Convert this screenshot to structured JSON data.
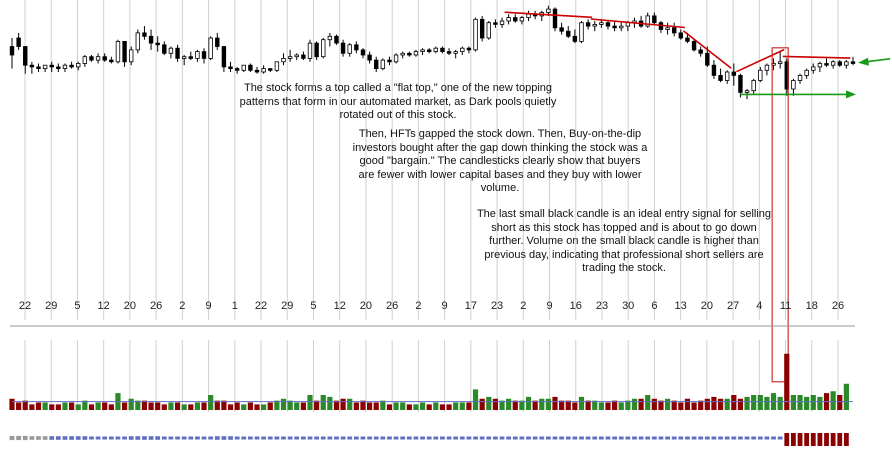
{
  "annotations": [
    "The stock forms a top called a \"flat top,\" one of the new topping patterns that form in our automated market, as Dark pools quietly rotated out of this stock.",
    "Then, HFTs gapped the stock down. Then, Buy-on-the-dip investors bought after the gap down thinking the stock was a good \"bargain.\" The candlesticks clearly show that buyers are fewer with lower capital bases and they buy with lower volume.",
    "The last small black candle is an ideal entry signal for selling short as this stock has topped and is about to go down further. Volume on the small black candle is higher than previous day, indicating that professional short sellers are trading the stock."
  ],
  "colors": {
    "grid": "#d0d0d0",
    "candle": "#000000",
    "trendline": "#cc0000",
    "arrow": "#1a9a1a",
    "volume_up": "#2a8a2a",
    "volume_down": "#8b0000",
    "highlight_box": "#cc3333",
    "volume_avg": "#6070c0",
    "indicator": "#8b0000",
    "indicator_grey": "#999999"
  },
  "chart_data": {
    "type": "candlestick",
    "x_tick_labels": [
      "22",
      "29",
      "5",
      "12",
      "20",
      "26",
      "2",
      "9",
      "1",
      "22",
      "29",
      "5",
      "12",
      "20",
      "26",
      "2",
      "9",
      "17",
      "23",
      "2",
      "9",
      "16",
      "23",
      "30",
      "6",
      "13",
      "20",
      "27",
      "4",
      "11",
      "18",
      "26"
    ],
    "ohlc": [
      [
        95,
        100,
        82,
        90
      ],
      [
        100,
        103,
        93,
        95
      ],
      [
        95,
        95,
        79,
        84
      ],
      [
        84,
        86,
        79,
        83
      ],
      [
        83,
        85,
        80,
        82
      ],
      [
        82,
        84,
        80,
        84
      ],
      [
        84,
        86,
        80,
        83
      ],
      [
        83,
        85,
        80,
        82
      ],
      [
        82,
        85,
        80,
        84
      ],
      [
        84,
        86,
        82,
        83
      ],
      [
        83,
        86,
        81,
        85
      ],
      [
        85,
        90,
        83,
        89
      ],
      [
        89,
        90,
        86,
        87
      ],
      [
        87,
        91,
        85,
        89
      ],
      [
        89,
        91,
        86,
        87
      ],
      [
        87,
        89,
        85,
        86
      ],
      [
        86,
        99,
        85,
        98
      ],
      [
        98,
        98,
        83,
        86
      ],
      [
        86,
        95,
        84,
        93
      ],
      [
        93,
        105,
        91,
        103
      ],
      [
        103,
        107,
        99,
        101
      ],
      [
        101,
        105,
        93,
        97
      ],
      [
        97,
        101,
        92,
        96
      ],
      [
        96,
        98,
        90,
        91
      ],
      [
        91,
        95,
        88,
        94
      ],
      [
        94,
        96,
        86,
        88
      ],
      [
        88,
        90,
        84,
        89
      ],
      [
        89,
        92,
        87,
        88
      ],
      [
        88,
        93,
        86,
        92
      ],
      [
        92,
        94,
        85,
        88
      ],
      [
        88,
        101,
        87,
        100
      ],
      [
        100,
        103,
        93,
        95
      ],
      [
        95,
        95,
        80,
        83
      ],
      [
        83,
        86,
        80,
        82
      ],
      [
        82,
        83,
        79,
        81
      ],
      [
        81,
        84,
        80,
        84
      ],
      [
        84,
        85,
        80,
        81
      ],
      [
        81,
        83,
        79,
        80
      ],
      [
        80,
        84,
        79,
        82
      ],
      [
        82,
        82,
        80,
        81
      ],
      [
        81,
        86,
        80,
        86
      ],
      [
        86,
        91,
        84,
        88
      ],
      [
        88,
        93,
        86,
        89
      ],
      [
        89,
        91,
        87,
        90
      ],
      [
        90,
        92,
        87,
        88
      ],
      [
        88,
        99,
        86,
        97
      ],
      [
        97,
        98,
        87,
        89
      ],
      [
        89,
        100,
        88,
        99
      ],
      [
        99,
        103,
        95,
        101
      ],
      [
        101,
        102,
        96,
        97
      ],
      [
        97,
        99,
        89,
        91
      ],
      [
        91,
        97,
        89,
        96
      ],
      [
        96,
        98,
        91,
        93
      ],
      [
        93,
        94,
        88,
        90
      ],
      [
        90,
        92,
        85,
        87
      ],
      [
        87,
        89,
        80,
        82
      ],
      [
        82,
        88,
        81,
        87
      ],
      [
        87,
        89,
        84,
        86
      ],
      [
        86,
        91,
        85,
        90
      ],
      [
        90,
        92,
        88,
        91
      ],
      [
        91,
        92,
        89,
        90
      ],
      [
        90,
        93,
        89,
        92
      ],
      [
        92,
        94,
        90,
        93
      ],
      [
        93,
        94,
        91,
        92
      ],
      [
        92,
        95,
        91,
        94
      ],
      [
        94,
        95,
        91,
        92
      ],
      [
        92,
        94,
        90,
        91
      ],
      [
        91,
        93,
        88,
        92
      ],
      [
        92,
        95,
        90,
        94
      ],
      [
        94,
        95,
        91,
        93
      ],
      [
        93,
        112,
        92,
        111
      ],
      [
        111,
        113,
        98,
        100
      ],
      [
        100,
        110,
        99,
        109
      ],
      [
        109,
        111,
        106,
        108
      ],
      [
        108,
        112,
        106,
        110
      ],
      [
        110,
        114,
        108,
        112
      ],
      [
        112,
        114,
        109,
        110
      ],
      [
        110,
        113,
        108,
        112
      ],
      [
        112,
        116,
        110,
        114
      ],
      [
        114,
        116,
        111,
        113
      ],
      [
        113,
        116,
        110,
        115
      ],
      [
        115,
        119,
        113,
        117
      ],
      [
        117,
        118,
        104,
        106
      ],
      [
        106,
        109,
        102,
        104
      ],
      [
        104,
        107,
        100,
        101
      ],
      [
        101,
        105,
        97,
        98
      ],
      [
        98,
        110,
        97,
        109
      ],
      [
        109,
        111,
        105,
        107
      ],
      [
        107,
        110,
        104,
        108
      ],
      [
        108,
        111,
        106,
        109
      ],
      [
        109,
        110,
        105,
        107
      ],
      [
        107,
        110,
        104,
        106
      ],
      [
        106,
        109,
        104,
        107
      ],
      [
        107,
        110,
        104,
        109
      ],
      [
        109,
        112,
        106,
        110
      ],
      [
        110,
        113,
        106,
        107
      ],
      [
        107,
        115,
        106,
        113
      ],
      [
        113,
        115,
        108,
        109
      ],
      [
        109,
        110,
        103,
        105
      ],
      [
        105,
        109,
        102,
        106
      ],
      [
        106,
        109,
        101,
        103
      ],
      [
        103,
        105,
        99,
        100
      ],
      [
        100,
        103,
        97,
        98
      ],
      [
        98,
        99,
        92,
        93
      ],
      [
        93,
        95,
        89,
        91
      ],
      [
        91,
        95,
        83,
        84
      ],
      [
        84,
        87,
        76,
        78
      ],
      [
        78,
        82,
        74,
        75
      ],
      [
        75,
        81,
        73,
        80
      ],
      [
        80,
        85,
        72,
        78
      ],
      [
        78,
        79,
        65,
        68
      ],
      [
        68,
        70,
        64,
        69
      ],
      [
        69,
        76,
        67,
        75
      ],
      [
        75,
        83,
        74,
        81
      ],
      [
        81,
        85,
        78,
        84
      ],
      [
        84,
        88,
        81,
        85
      ],
      [
        85,
        92,
        82,
        86
      ],
      [
        86,
        88,
        66,
        70
      ],
      [
        70,
        76,
        66,
        75
      ],
      [
        75,
        79,
        73,
        78
      ],
      [
        78,
        82,
        76,
        81
      ],
      [
        81,
        85,
        79,
        83
      ],
      [
        83,
        86,
        80,
        85
      ],
      [
        85,
        88,
        83,
        84
      ],
      [
        84,
        87,
        82,
        86
      ],
      [
        86,
        87,
        83,
        84
      ],
      [
        84,
        87,
        82,
        86
      ],
      [
        86,
        89,
        84,
        85
      ]
    ],
    "volume": [
      6,
      4,
      5,
      3,
      4,
      4,
      3,
      3,
      4,
      4,
      3,
      5,
      3,
      4,
      4,
      3,
      9,
      4,
      6,
      5,
      5,
      4,
      4,
      3,
      4,
      4,
      3,
      3,
      4,
      4,
      8,
      5,
      5,
      3,
      4,
      3,
      4,
      3,
      3,
      4,
      5,
      6,
      5,
      4,
      4,
      8,
      5,
      8,
      7,
      5,
      6,
      6,
      4,
      5,
      4,
      4,
      5,
      3,
      4,
      4,
      3,
      3,
      4,
      3,
      4,
      3,
      3,
      4,
      4,
      4,
      11,
      6,
      7,
      6,
      5,
      6,
      5,
      5,
      7,
      5,
      6,
      6,
      7,
      5,
      5,
      4,
      7,
      5,
      5,
      4,
      4,
      5,
      4,
      5,
      6,
      6,
      8,
      6,
      5,
      6,
      5,
      4,
      6,
      4,
      5,
      6,
      7,
      6,
      6,
      8,
      6,
      7,
      8,
      8,
      7,
      9,
      7,
      30,
      8,
      8,
      7,
      8,
      7,
      9,
      10,
      8,
      14
    ],
    "volume_average": 4.5,
    "indicator": [
      7,
      7,
      7,
      6,
      6,
      6,
      6,
      6,
      6,
      6,
      6,
      6,
      5,
      5,
      5,
      5,
      5,
      5,
      6,
      6,
      6,
      6,
      6,
      5,
      5,
      5,
      5,
      5,
      5,
      5,
      5,
      6,
      6,
      6,
      5,
      5,
      5,
      5,
      5,
      5,
      5,
      5,
      5,
      5,
      5,
      5,
      5,
      5,
      5,
      5,
      5,
      5,
      5,
      5,
      5,
      5,
      5,
      5,
      5,
      5,
      5,
      5,
      5,
      5,
      5,
      5,
      5,
      5,
      5,
      5,
      5,
      5,
      5,
      5,
      5,
      5,
      5,
      5,
      5,
      5,
      5,
      5,
      5,
      5,
      5,
      5,
      5,
      5,
      5,
      5,
      5,
      5,
      5,
      5,
      5,
      5,
      5,
      5,
      5,
      5,
      5,
      5,
      5,
      5,
      5,
      5,
      5,
      5,
      5,
      5,
      5,
      5,
      5,
      5,
      5,
      5,
      5,
      12,
      12,
      12,
      12,
      12,
      12,
      12,
      12,
      12,
      12
    ],
    "trendlines": [
      {
        "from_index": 75,
        "to_index": 87
      },
      {
        "from_index": 88,
        "to_index": 101
      },
      {
        "from_index": 102,
        "to_index": 108
      },
      {
        "from_index": 110,
        "to_index": 116
      },
      {
        "from_index": 117,
        "to_index": 126
      }
    ],
    "support_arrow_at_price": 68,
    "resistance_arrow_at_price": 86,
    "highlight_index": 116,
    "grid": true
  }
}
